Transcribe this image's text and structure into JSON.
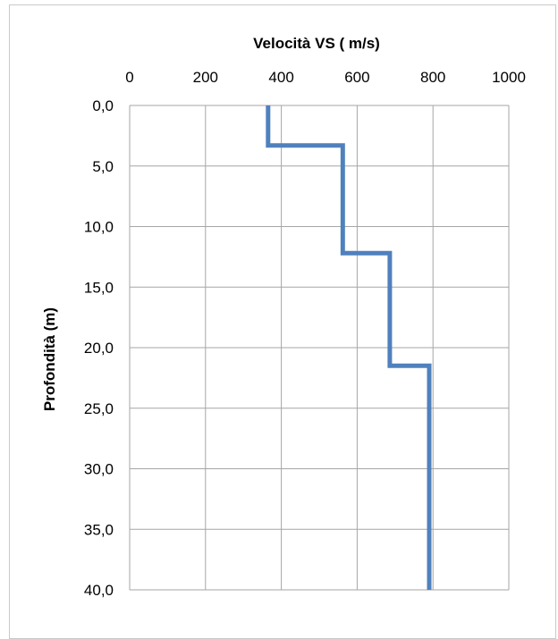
{
  "chart_data": {
    "type": "line",
    "title": "Velocità VS ( m/s)",
    "xlabel": "Velocità VS ( m/s)",
    "ylabel": "Profondità (m)",
    "xlim": [
      0,
      1000
    ],
    "ylim": [
      0,
      40
    ],
    "y_inverted": true,
    "x_axis_position": "top",
    "grid": true,
    "x_ticks": [
      "0",
      "200",
      "400",
      "600",
      "800",
      "1000"
    ],
    "y_ticks": [
      "0,0",
      "5,0",
      "10,0",
      "15,0",
      "20,0",
      "25,0",
      "30,0",
      "35,0",
      "40,0"
    ],
    "series": [
      {
        "name": "",
        "color": "#4f81bd",
        "points": [
          {
            "x": 365,
            "y": 0
          },
          {
            "x": 365,
            "y": 3.3
          },
          {
            "x": 562,
            "y": 3.3
          },
          {
            "x": 562,
            "y": 12.2
          },
          {
            "x": 686,
            "y": 12.2
          },
          {
            "x": 686,
            "y": 21.5
          },
          {
            "x": 790,
            "y": 21.5
          },
          {
            "x": 790,
            "y": 40
          }
        ]
      }
    ]
  }
}
